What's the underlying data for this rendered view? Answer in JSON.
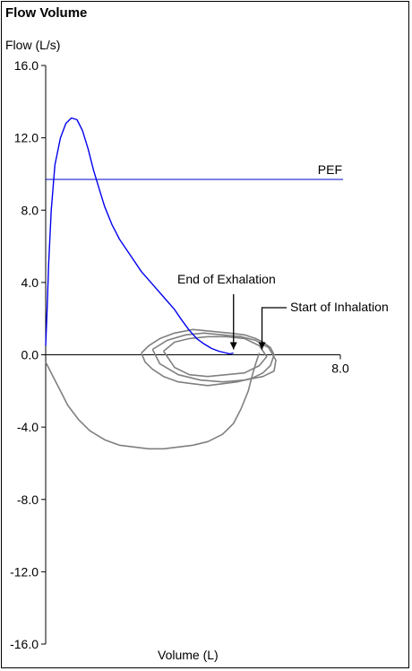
{
  "chart_data": {
    "type": "line",
    "title": "Flow Volume",
    "xlabel": "Volume (L)",
    "ylabel": "Flow (L/s)",
    "xlim": [
      0,
      8.0
    ],
    "ylim": [
      -16.0,
      16.0
    ],
    "y_ticks": [
      "16.0",
      "12.0",
      "8.0",
      "4.0",
      "0.0",
      "-4.0",
      "-8.0",
      "-12.0",
      "-16.0"
    ],
    "x_tick_labels": [
      "8.0"
    ],
    "reference_lines": [
      {
        "label": "PEF",
        "y": 9.7,
        "color": "#0000cc"
      }
    ],
    "annotations": [
      {
        "label": "End of Exhalation",
        "x": 5.1,
        "y": 0.1
      },
      {
        "label": "Start of Inhalation",
        "x": 5.8,
        "y": 0.1
      }
    ],
    "series": [
      {
        "color": "#0000ee",
        "x": [
          0.0,
          0.04,
          0.08,
          0.15,
          0.25,
          0.4,
          0.55,
          0.7,
          0.85,
          1.0,
          1.15,
          1.3,
          1.45,
          1.6,
          1.8,
          2.0,
          2.3,
          2.6,
          2.9,
          3.2,
          3.5,
          3.7,
          3.9,
          4.1,
          4.3,
          4.5,
          4.7,
          4.9,
          5.0,
          5.1
        ],
        "y": [
          0.5,
          2.5,
          5.0,
          8.0,
          10.5,
          12.0,
          12.8,
          13.1,
          13.0,
          12.4,
          11.4,
          10.2,
          9.2,
          8.2,
          7.2,
          6.4,
          5.5,
          4.6,
          3.9,
          3.2,
          2.5,
          1.9,
          1.35,
          0.9,
          0.6,
          0.35,
          0.2,
          0.1,
          0.05,
          0.1
        ]
      },
      {
        "color": "#808080",
        "x": [
          0.0,
          0.2,
          0.4,
          0.6,
          0.9,
          1.2,
          1.6,
          2.0,
          2.4,
          2.8,
          3.2,
          3.6,
          4.0,
          4.4,
          4.8,
          5.1,
          5.3,
          5.5,
          5.6,
          5.7,
          5.8
        ],
        "y": [
          -0.4,
          -1.2,
          -2.0,
          -2.8,
          -3.6,
          -4.2,
          -4.7,
          -5.0,
          -5.1,
          -5.2,
          -5.2,
          -5.1,
          -5.0,
          -4.8,
          -4.4,
          -3.8,
          -3.0,
          -2.0,
          -1.2,
          -0.5,
          0.1
        ]
      },
      {
        "color": "#808080",
        "x": [
          2.6,
          2.8,
          3.1,
          3.5,
          4.0,
          4.5,
          5.0,
          5.4,
          5.7,
          5.9,
          6.1,
          6.2,
          6.1,
          5.9,
          5.6,
          5.2,
          4.8,
          4.4,
          4.0,
          3.6,
          3.2,
          2.9,
          2.7,
          2.6
        ],
        "y": [
          0.1,
          0.5,
          0.9,
          1.2,
          1.4,
          1.3,
          1.2,
          1.1,
          0.9,
          0.7,
          0.4,
          0.0,
          -0.6,
          -1.0,
          -1.3,
          -1.5,
          -1.6,
          -1.7,
          -1.6,
          -1.5,
          -1.2,
          -0.8,
          -0.4,
          0.1
        ]
      },
      {
        "color": "#808080",
        "x": [
          3.2,
          3.5,
          3.9,
          4.4,
          4.9,
          5.4,
          5.8,
          6.0,
          5.8,
          5.4,
          4.9,
          4.4,
          3.9,
          3.5,
          3.2
        ],
        "y": [
          0.2,
          0.7,
          0.9,
          1.0,
          1.0,
          0.9,
          0.5,
          -0.1,
          -0.6,
          -1.0,
          -1.1,
          -1.2,
          -1.1,
          -0.7,
          0.2
        ]
      },
      {
        "color": "#808080",
        "x": [
          2.9,
          3.3,
          3.8,
          4.3,
          4.8,
          5.3,
          5.7,
          6.05,
          6.25,
          6.2,
          5.9,
          5.4,
          4.8,
          4.2,
          3.6,
          3.1,
          2.9
        ],
        "y": [
          0.3,
          0.8,
          1.1,
          1.2,
          1.1,
          1.0,
          0.8,
          0.4,
          -0.3,
          -0.9,
          -1.2,
          -1.4,
          -1.5,
          -1.4,
          -1.1,
          -0.5,
          0.3
        ]
      }
    ]
  }
}
